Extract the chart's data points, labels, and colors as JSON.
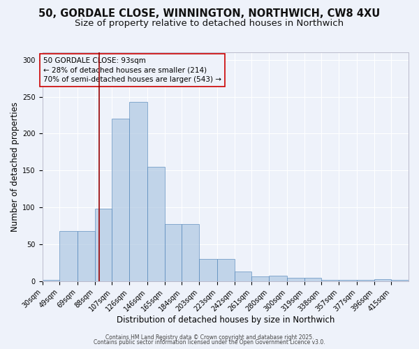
{
  "title_line1": "50, GORDALE CLOSE, WINNINGTON, NORTHWICH, CW8 4XU",
  "title_line2": "Size of property relative to detached houses in Northwich",
  "xlabel": "Distribution of detached houses by size in Northwich",
  "ylabel": "Number of detached properties",
  "bin_labels": [
    "30sqm",
    "49sqm",
    "69sqm",
    "88sqm",
    "107sqm",
    "126sqm",
    "146sqm",
    "165sqm",
    "184sqm",
    "203sqm",
    "223sqm",
    "242sqm",
    "261sqm",
    "280sqm",
    "300sqm",
    "319sqm",
    "338sqm",
    "357sqm",
    "377sqm",
    "396sqm",
    "415sqm"
  ],
  "bin_edges": [
    30,
    49,
    69,
    88,
    107,
    126,
    146,
    165,
    184,
    203,
    223,
    242,
    261,
    280,
    300,
    319,
    338,
    357,
    377,
    396,
    415,
    434
  ],
  "bar_heights": [
    2,
    68,
    68,
    98,
    220,
    243,
    155,
    78,
    78,
    30,
    30,
    13,
    7,
    8,
    5,
    5,
    2,
    2,
    2,
    3,
    2
  ],
  "bar_color": "#aac4e0",
  "bar_edgecolor": "#5588bb",
  "bar_alpha": 0.65,
  "vline_x": 93,
  "vline_color": "#990000",
  "annotation_text": "50 GORDALE CLOSE: 93sqm\n← 28% of detached houses are smaller (214)\n70% of semi-detached houses are larger (543) →",
  "ylim": [
    0,
    310
  ],
  "yticks": [
    0,
    50,
    100,
    150,
    200,
    250,
    300
  ],
  "background_color": "#eef2fa",
  "grid_color": "#ffffff",
  "footer_text1": "Contains HM Land Registry data © Crown copyright and database right 2025.",
  "footer_text2": "Contains public sector information licensed under the Open Government Licence v3.0.",
  "title_fontsize": 10.5,
  "subtitle_fontsize": 9.5,
  "xlabel_fontsize": 8.5,
  "ylabel_fontsize": 8.5,
  "tick_fontsize": 7,
  "ann_fontsize": 7.5,
  "footer_fontsize": 5.5
}
